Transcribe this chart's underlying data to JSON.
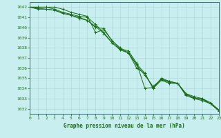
{
  "title": "Graphe pression niveau de la mer (hPa)",
  "background_color": "#c8eef0",
  "grid_color": "#b0d8da",
  "line_color": "#1a6b1a",
  "xlim": [
    0,
    23
  ],
  "ylim": [
    1031.5,
    1042.5
  ],
  "yticks": [
    1032,
    1033,
    1034,
    1035,
    1036,
    1037,
    1038,
    1039,
    1040,
    1041,
    1042
  ],
  "xticks": [
    0,
    1,
    2,
    3,
    4,
    5,
    6,
    7,
    8,
    9,
    10,
    11,
    12,
    13,
    14,
    15,
    16,
    17,
    18,
    19,
    20,
    21,
    22,
    23
  ],
  "series": [
    [
      1042.0,
      1042.0,
      1042.0,
      1041.8,
      1041.5,
      1041.3,
      1041.1,
      1041.0,
      1040.3,
      1039.5,
      1038.5,
      1037.8,
      1037.5,
      1036.3,
      1035.3,
      1034.2,
      1034.9,
      1034.6,
      1034.5,
      1033.4,
      1033.1,
      1032.9,
      1032.5,
      1031.9
    ],
    [
      1042.0,
      1041.9,
      1041.8,
      1041.7,
      1041.4,
      1041.2,
      1041.0,
      1040.7,
      1040.1,
      1039.4,
      1038.5,
      1037.8,
      1037.5,
      1036.0,
      1035.5,
      1034.0,
      1034.8,
      1034.5,
      1034.5,
      1033.3,
      1033.0,
      1032.8,
      1032.5,
      1031.8
    ],
    [
      1042.0,
      1041.8,
      1041.8,
      1041.7,
      1041.4,
      1041.2,
      1040.9,
      1040.7,
      1040.0,
      1039.9,
      1038.7,
      1038.0,
      1037.5,
      1036.4,
      1035.5,
      1034.0,
      1035.0,
      1034.7,
      1034.5,
      1033.5,
      1033.2,
      1033.0,
      1032.6,
      1031.9
    ],
    [
      1042.0,
      1042.0,
      1042.0,
      1042.0,
      1041.8,
      1041.5,
      1041.3,
      1041.1,
      1039.5,
      1039.8,
      1038.7,
      1037.9,
      1037.7,
      1036.5,
      1034.0,
      1034.1,
      1034.9,
      1034.7,
      1034.5,
      1033.5,
      1033.0,
      1033.0,
      1032.5,
      1031.8
    ]
  ],
  "figsize": [
    3.2,
    2.0
  ],
  "dpi": 100
}
